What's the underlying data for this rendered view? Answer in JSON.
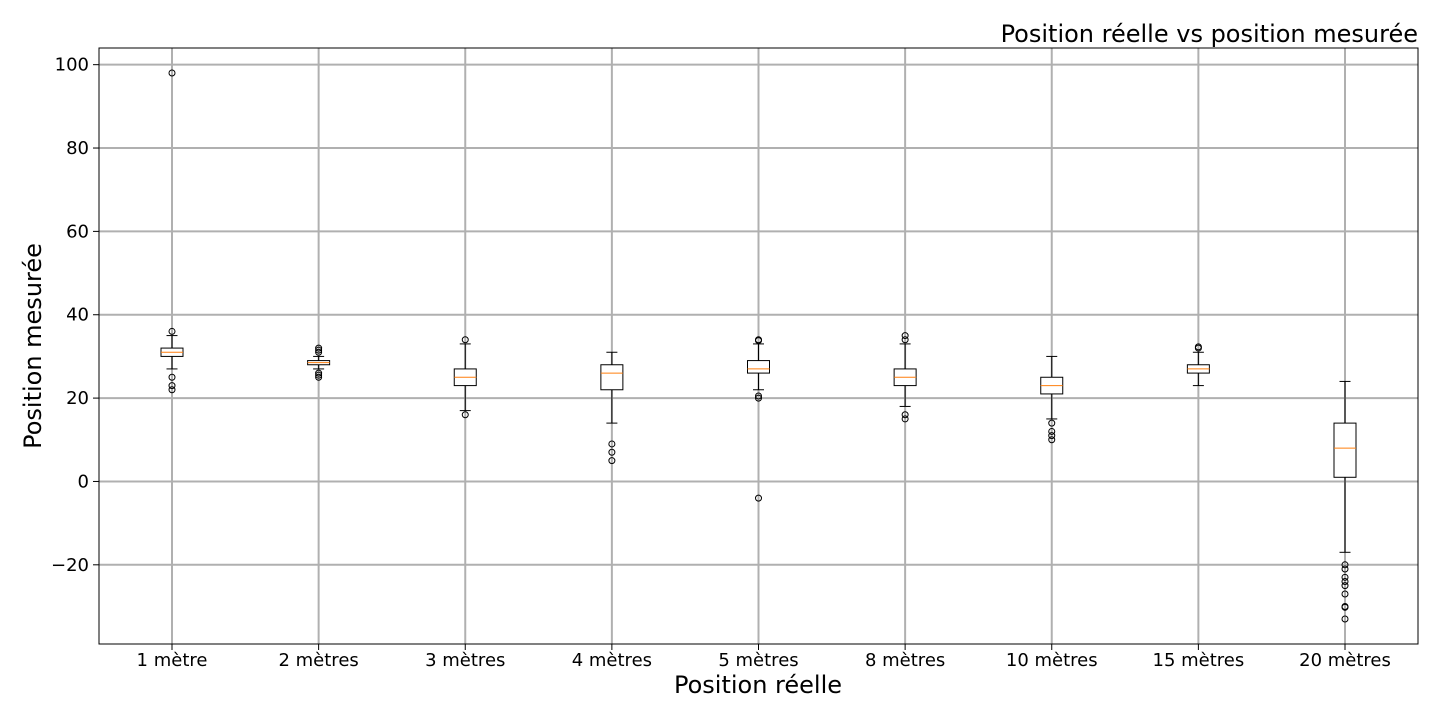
{
  "chart_data": {
    "type": "box",
    "title": "Position réelle vs position mesurée",
    "xlabel": "Position réelle",
    "ylabel": "Position mesurée",
    "ylim": [
      -39,
      104
    ],
    "yticks": [
      -20,
      0,
      20,
      40,
      60,
      80,
      100
    ],
    "ytick_labels": [
      "−20",
      "0",
      "20",
      "40",
      "60",
      "80",
      "100"
    ],
    "grid": true,
    "categories": [
      "1 mètre",
      "2 mètres",
      "3 mètres",
      "4 mètres",
      "5 mètres",
      "8 mètres",
      "10 mètres",
      "15 mètres",
      "20 mètres"
    ],
    "boxes": [
      {
        "whislo": 27,
        "q1": 30,
        "med": 31,
        "q3": 32,
        "whishi": 35,
        "fliers": [
          98,
          36,
          25,
          23,
          22
        ]
      },
      {
        "whislo": 27,
        "q1": 28,
        "med": 28.5,
        "q3": 29,
        "whishi": 30,
        "fliers": [
          32,
          31.5,
          31,
          26,
          25.5,
          25
        ]
      },
      {
        "whislo": 17,
        "q1": 23,
        "med": 25,
        "q3": 27,
        "whishi": 33,
        "fliers": [
          34,
          16
        ]
      },
      {
        "whislo": 14,
        "q1": 22,
        "med": 26,
        "q3": 28,
        "whishi": 31,
        "fliers": [
          9,
          7,
          5
        ]
      },
      {
        "whislo": 22,
        "q1": 26,
        "med": 27,
        "q3": 29,
        "whishi": 33,
        "fliers": [
          34,
          33.8,
          20.5,
          20,
          -4
        ]
      },
      {
        "whislo": 18,
        "q1": 23,
        "med": 25,
        "q3": 27,
        "whishi": 33,
        "fliers": [
          35,
          34,
          16,
          15
        ]
      },
      {
        "whislo": 15,
        "q1": 21,
        "med": 23,
        "q3": 25,
        "whishi": 30,
        "fliers": [
          14,
          12,
          11,
          10
        ]
      },
      {
        "whislo": 23,
        "q1": 26,
        "med": 27,
        "q3": 28,
        "whishi": 31,
        "fliers": [
          32,
          32.3
        ]
      },
      {
        "whislo": -17,
        "q1": 1,
        "med": 8,
        "q3": 14,
        "whishi": 24,
        "fliers": [
          -20,
          -21,
          -23,
          -24,
          -25,
          -27,
          -30,
          -30.2,
          -33
        ]
      }
    ],
    "colors": {
      "box": "#000000",
      "median": "#ff7f0e",
      "grid": "#b0b0b0",
      "flier": "#000000"
    }
  }
}
